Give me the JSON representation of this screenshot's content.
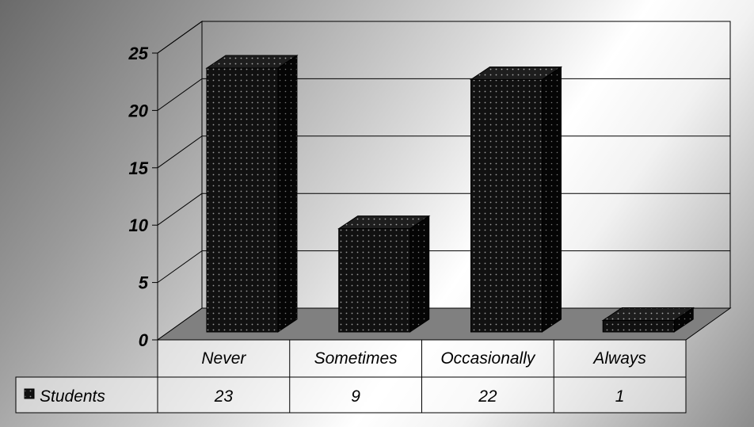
{
  "chart_data": {
    "type": "bar",
    "title": "",
    "xlabel": "",
    "ylabel": "",
    "categories": [
      "Never",
      "Sometimes",
      "Occasionally",
      "Always"
    ],
    "series": [
      {
        "name": "Students",
        "values": [
          23,
          9,
          22,
          1
        ]
      }
    ],
    "ylim": [
      0,
      25
    ],
    "yticks": [
      "0",
      "5",
      "10",
      "15",
      "20",
      "25"
    ],
    "data_table": true,
    "grid": true,
    "three_d": true,
    "colors": {
      "bar": "#111111",
      "floor": "#808080",
      "gridline": "#000000"
    }
  }
}
